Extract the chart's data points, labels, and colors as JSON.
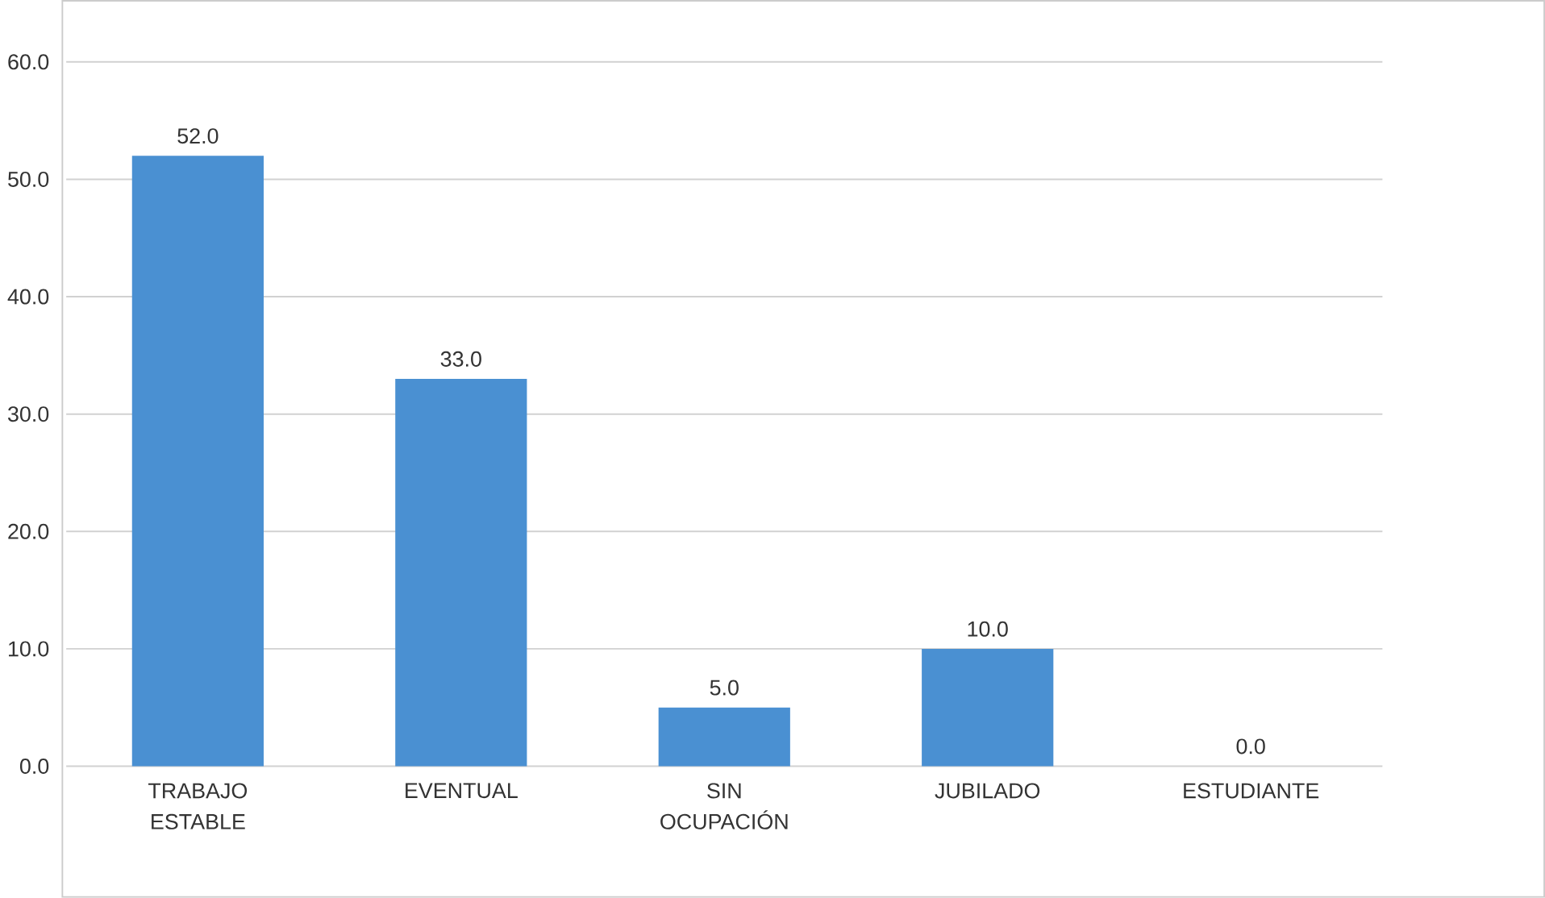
{
  "chart_data": {
    "type": "bar",
    "categories": [
      "TRABAJO ESTABLE",
      "EVENTUAL",
      "SIN OCUPACIÓN",
      "JUBILADO",
      "ESTUDIANTE"
    ],
    "values": [
      52.0,
      33.0,
      5.0,
      10.0,
      0.0
    ],
    "value_labels": [
      "52.0",
      "33.0",
      "5.0",
      "10.0",
      "0.0"
    ],
    "color": "#4a90d2",
    "ylim": [
      0,
      60
    ],
    "yticks": [
      {
        "value": 0,
        "label": "0.0"
      },
      {
        "value": 10,
        "label": "10.0"
      },
      {
        "value": 20,
        "label": "20.0"
      },
      {
        "value": 30,
        "label": "30.0"
      },
      {
        "value": 40,
        "label": "40.0"
      },
      {
        "value": 50,
        "label": "50.0"
      },
      {
        "value": 60,
        "label": "60.0"
      }
    ],
    "grid": true
  }
}
